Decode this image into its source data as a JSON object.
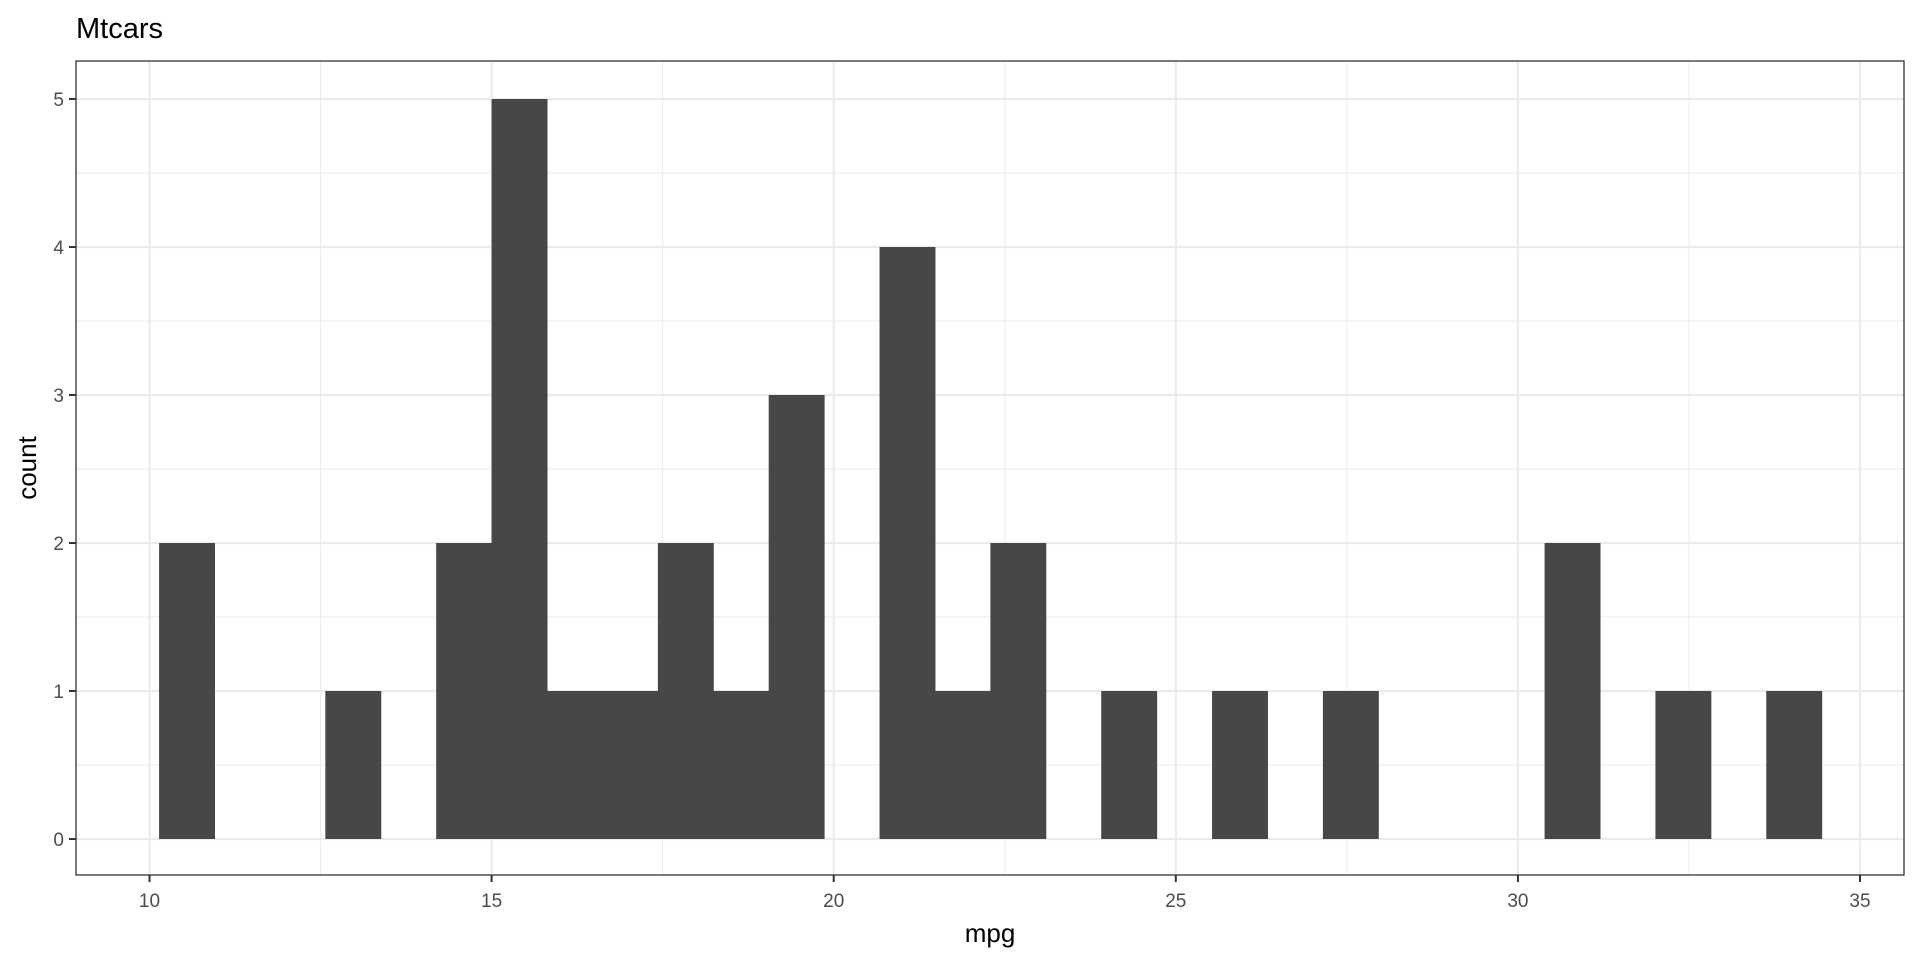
{
  "chart_data": {
    "type": "bar",
    "title": "Mtcars",
    "xlabel": "mpg",
    "ylabel": "count",
    "bin_start": 10.14,
    "bin_width": 0.81,
    "counts": [
      2,
      0,
      0,
      1,
      0,
      2,
      5,
      1,
      1,
      2,
      1,
      3,
      0,
      4,
      1,
      2,
      0,
      1,
      0,
      1,
      0,
      1,
      0,
      0,
      0,
      2,
      0,
      1,
      0,
      1
    ],
    "xlim": [
      8.9,
      35.8
    ],
    "ylim": [
      -0.25,
      5.25
    ],
    "xticks": [
      10,
      15,
      20,
      25,
      30,
      35
    ],
    "yticks": [
      0,
      1,
      2,
      3,
      4,
      5
    ],
    "grid": true,
    "bar_color": "#474747",
    "grid_color": "#ebebeb"
  }
}
